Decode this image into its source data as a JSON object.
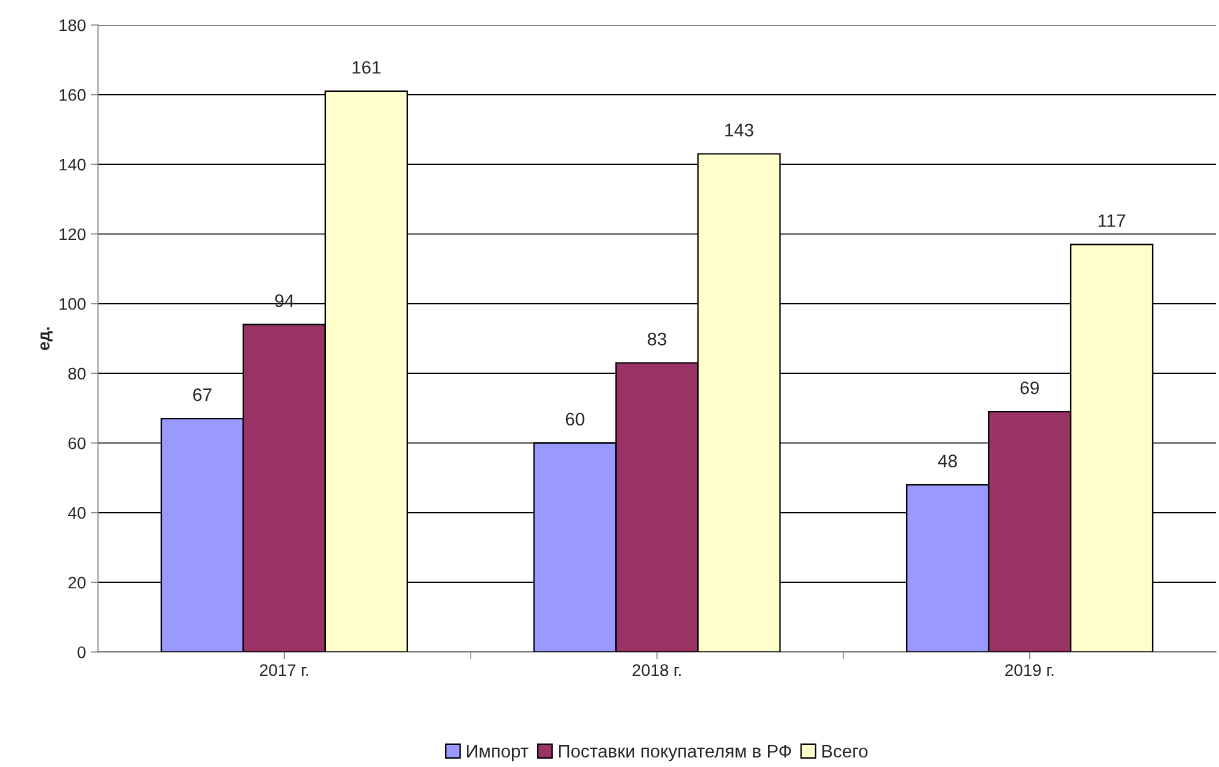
{
  "chart_data": {
    "type": "bar",
    "ylabel": "ед.",
    "categories": [
      "2017 г.",
      "2018 г.",
      "2019 г."
    ],
    "series": [
      {
        "name": "Импорт",
        "color": "#9999ff",
        "values": [
          67,
          60,
          48
        ]
      },
      {
        "name": "Поставки покупателям в РФ",
        "color": "#993366",
        "values": [
          94,
          83,
          69
        ]
      },
      {
        "name": "Всего",
        "color": "#ffffcc",
        "values": [
          161,
          143,
          117
        ]
      }
    ],
    "ylim": [
      0,
      180
    ],
    "yticks": [
      0,
      20,
      40,
      60,
      80,
      100,
      120,
      140,
      160,
      180
    ],
    "grid": "y",
    "legend": "bottom",
    "data_labels": true
  }
}
